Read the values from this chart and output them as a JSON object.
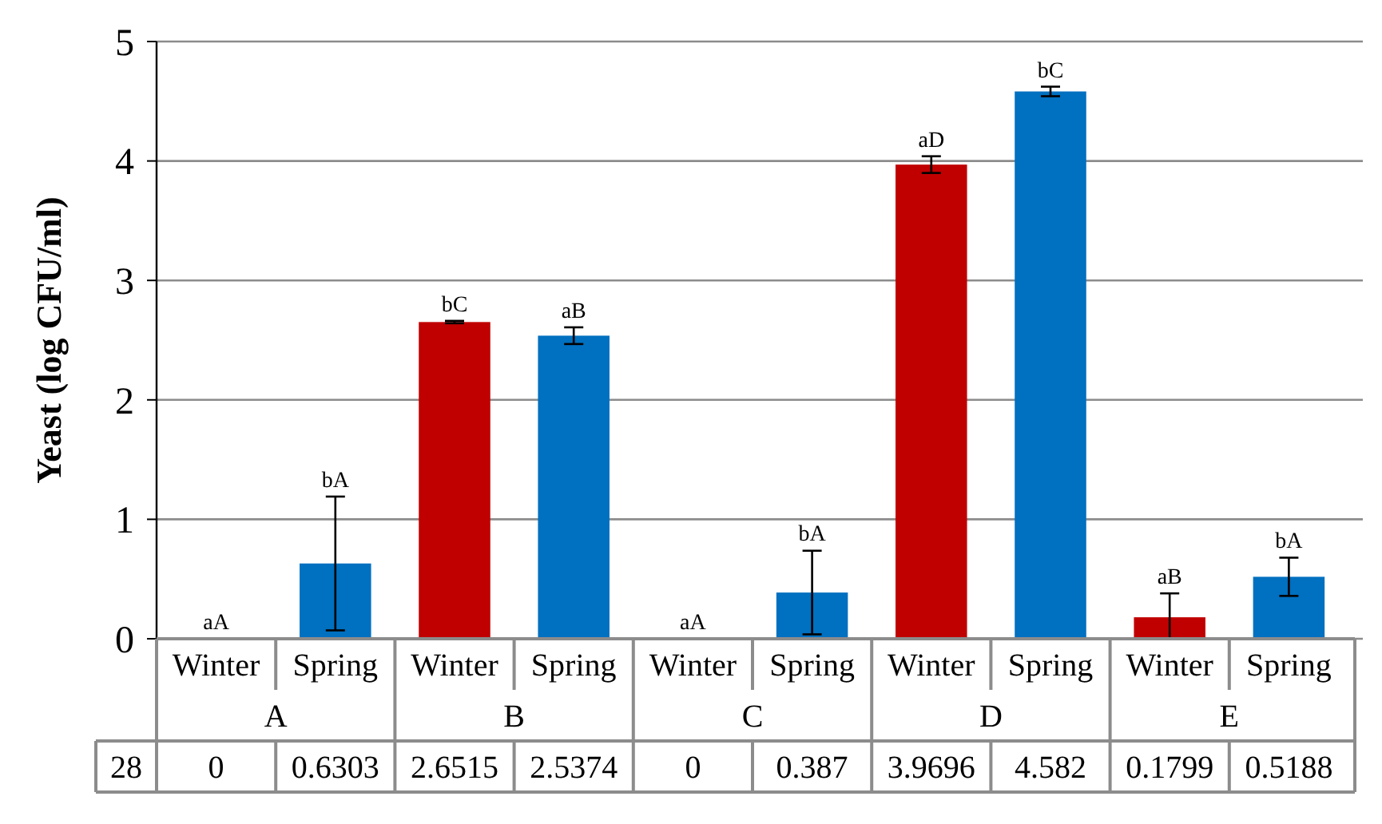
{
  "chart_data": {
    "type": "bar",
    "ylabel": "Yeast (log CFU/ml)",
    "categories": [
      "Winter",
      "Spring",
      "Winter",
      "Spring",
      "Winter",
      "Spring",
      "Winter",
      "Spring",
      "Winter",
      "Spring"
    ],
    "series": [
      {
        "name": "28",
        "colors": [
          "#c00000",
          "#0070c0",
          "#c00000",
          "#0070c0",
          "#c00000",
          "#0070c0",
          "#c00000",
          "#0070c0",
          "#c00000",
          "#0070c0"
        ],
        "values": [
          0,
          0.6303,
          2.6515,
          2.5374,
          0,
          0.387,
          3.9696,
          4.582,
          0.1799,
          0.5188
        ],
        "errors": [
          null,
          0.56,
          0.01,
          0.07,
          null,
          0.35,
          0.07,
          0.04,
          [
            0,
            0.38
          ],
          0.16
        ]
      }
    ],
    "ylim": [
      0,
      5
    ],
    "yticks": [
      0,
      1,
      2,
      3,
      4,
      5
    ],
    "grid": "y",
    "data_labels": true,
    "annotations": [
      {
        "text": "aA",
        "y": 0
      },
      {
        "text": "bA",
        "y": 1.19
      },
      {
        "text": "bC",
        "y": 2.66
      },
      {
        "text": "aB",
        "y": 2.61
      },
      {
        "text": "aA",
        "y": 0
      },
      {
        "text": "bA",
        "y": 0.74
      },
      {
        "text": "aD",
        "y": 4.04
      },
      {
        "text": "bC",
        "y": 4.62
      },
      {
        "text": "aB",
        "y": 0.38
      },
      {
        "text": "bA",
        "y": 0.68
      },
      "A",
      "B",
      "C",
      "D",
      "E"
    ]
  }
}
